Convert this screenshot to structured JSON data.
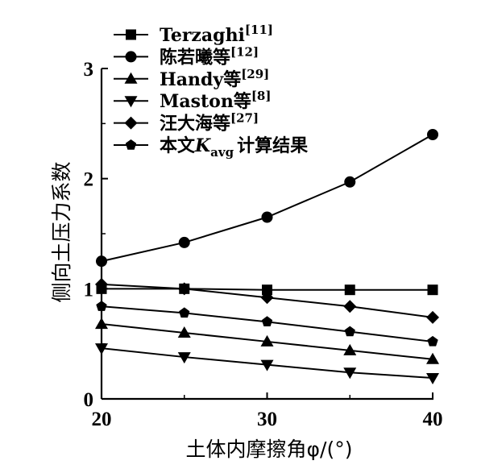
{
  "chart_data": {
    "type": "line",
    "xlabel": "土体内摩擦角φ/(°)",
    "ylabel": "侧向土压力系数",
    "xlim": [
      20,
      40
    ],
    "ylim": [
      0,
      3
    ],
    "x_ticks": [
      "20",
      "30",
      "40"
    ],
    "y_ticks": [
      "0",
      "1",
      "2",
      "3"
    ],
    "grid": false,
    "legend_position": "top-left",
    "x": [
      20,
      25,
      30,
      35,
      40
    ],
    "series": [
      {
        "name": "Terzaghi",
        "ref": "[11]",
        "marker": "square",
        "values": [
          1.0,
          1.0,
          0.99,
          0.99,
          0.99
        ]
      },
      {
        "name": "陈若曦等",
        "ref": "[12]",
        "marker": "circle",
        "values": [
          1.25,
          1.42,
          1.65,
          1.97,
          2.4
        ]
      },
      {
        "name": "Handy等",
        "ref": "[29]",
        "marker": "triangle-up",
        "values": [
          0.68,
          0.6,
          0.52,
          0.44,
          0.36
        ]
      },
      {
        "name": "Maston等",
        "ref": "[8]",
        "marker": "triangle-down",
        "values": [
          0.46,
          0.38,
          0.31,
          0.24,
          0.19
        ]
      },
      {
        "name": "汪大海等",
        "ref": "[27]",
        "marker": "diamond",
        "values": [
          1.04,
          1.0,
          0.92,
          0.84,
          0.74
        ]
      },
      {
        "name": "本文Kavg计算结果",
        "ref": "",
        "marker": "pentagon",
        "values": [
          0.84,
          0.78,
          0.7,
          0.61,
          0.52
        ]
      }
    ]
  }
}
